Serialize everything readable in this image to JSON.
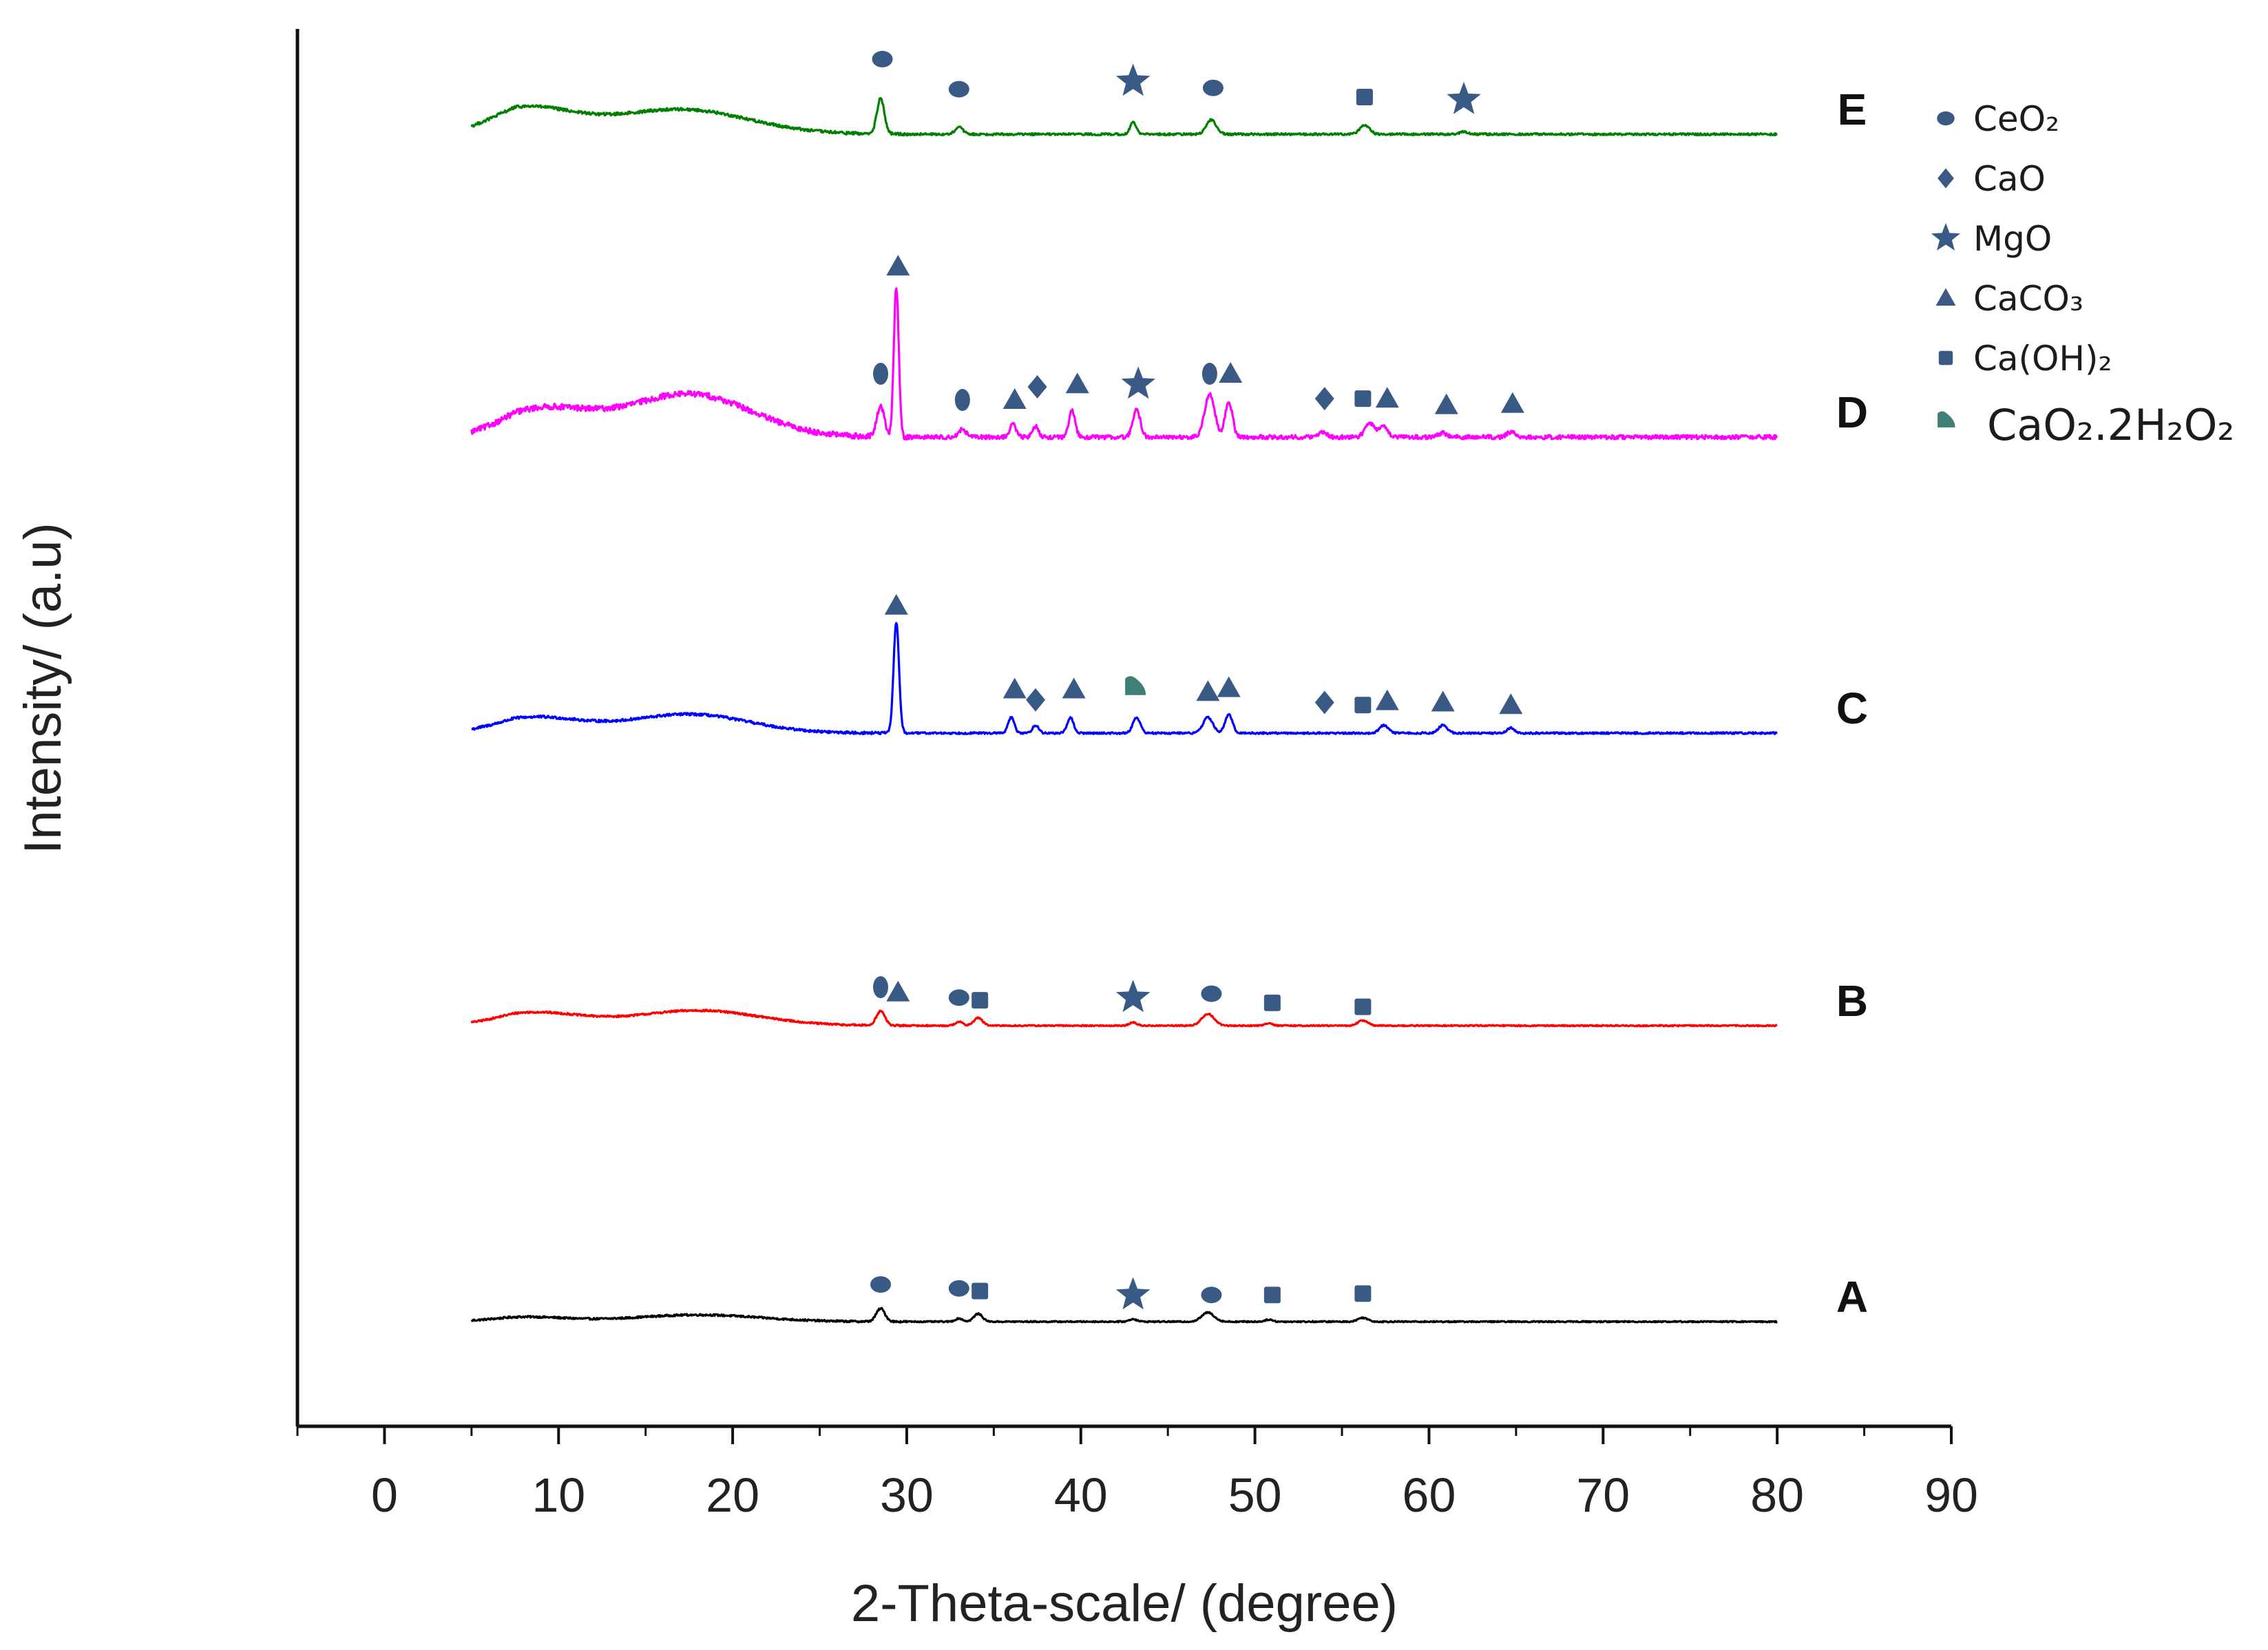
{
  "chart_data": {
    "type": "line",
    "title": "",
    "xlabel": "2-Theta-scale/ (degree)",
    "ylabel": "Intensity/ (a.u)",
    "xlim": [
      -5,
      90
    ],
    "xticks": [
      0,
      10,
      20,
      30,
      40,
      50,
      60,
      70,
      80,
      90
    ],
    "x_range": [
      5,
      80
    ],
    "grid": false,
    "legend_position": "top-right",
    "colors": {
      "marker": "#3a5a86",
      "hexagonal": "#3e7f78",
      "axis": "#111111"
    },
    "legend": [
      {
        "shape": "ellipse",
        "label": "CeO₂"
      },
      {
        "shape": "diamond",
        "label": "CaO"
      },
      {
        "shape": "star",
        "label": "MgO"
      },
      {
        "shape": "triangle",
        "label": "CaCO₃"
      },
      {
        "shape": "square",
        "label": "Ca(OH)₂"
      },
      {
        "shape": "leaf",
        "label": "CaO₂.2H₂O₂"
      }
    ],
    "series": [
      {
        "name": "A",
        "color": "#000000",
        "baseline": 0.0,
        "humps": [
          [
            8,
            0.18,
            3.5
          ],
          [
            18,
            0.26,
            5
          ]
        ],
        "peaks": [
          [
            28.5,
            0.5,
            0.35
          ],
          [
            33.0,
            0.12,
            0.3
          ],
          [
            34.1,
            0.3,
            0.35
          ],
          [
            43.0,
            0.1,
            0.3
          ],
          [
            47.3,
            0.35,
            0.5
          ],
          [
            50.8,
            0.08,
            0.3
          ],
          [
            56.2,
            0.15,
            0.4
          ]
        ],
        "noise": 0.025,
        "markers": [
          {
            "shape": "ellipse",
            "x": 28.5,
            "y": 1.0
          },
          {
            "shape": "ellipse",
            "x": 33.0,
            "y": 0.85
          },
          {
            "shape": "square",
            "x": 34.2,
            "y": 0.75
          },
          {
            "shape": "star",
            "x": 43.0,
            "y": 0.6
          },
          {
            "shape": "ellipse",
            "x": 47.5,
            "y": 0.6
          },
          {
            "shape": "square",
            "x": 51.0,
            "y": 0.6
          },
          {
            "shape": "square",
            "x": 56.2,
            "y": 0.65
          }
        ]
      },
      {
        "name": "B",
        "color": "#ff0000",
        "baseline": 0.0,
        "humps": [
          [
            8.5,
            0.5,
            4
          ],
          [
            18,
            0.58,
            5
          ]
        ],
        "peaks": [
          [
            28.5,
            0.55,
            0.35
          ],
          [
            33.0,
            0.15,
            0.3
          ],
          [
            34.1,
            0.3,
            0.35
          ],
          [
            43.0,
            0.12,
            0.3
          ],
          [
            47.3,
            0.45,
            0.5
          ],
          [
            50.8,
            0.1,
            0.3
          ],
          [
            56.2,
            0.2,
            0.4
          ]
        ],
        "noise": 0.025,
        "markers": [
          {
            "shape": "ellipse-v",
            "x": 28.5,
            "y": 1.05
          },
          {
            "shape": "triangle",
            "x": 29.5,
            "y": 0.85
          },
          {
            "shape": "ellipse",
            "x": 33.0,
            "y": 0.65
          },
          {
            "shape": "square",
            "x": 34.2,
            "y": 0.55
          },
          {
            "shape": "star",
            "x": 43.0,
            "y": 0.65
          },
          {
            "shape": "ellipse",
            "x": 47.5,
            "y": 0.8
          },
          {
            "shape": "square",
            "x": 51.0,
            "y": 0.45
          },
          {
            "shape": "square",
            "x": 56.2,
            "y": 0.3
          }
        ]
      },
      {
        "name": "C",
        "color": "#0000ff",
        "baseline": 0.0,
        "humps": [
          [
            8.5,
            0.6,
            4
          ],
          [
            17.5,
            0.72,
            4.8
          ]
        ],
        "peaks": [
          [
            29.4,
            4.25,
            0.22
          ],
          [
            36.0,
            0.6,
            0.25
          ],
          [
            37.4,
            0.3,
            0.25
          ],
          [
            39.4,
            0.6,
            0.25
          ],
          [
            43.2,
            0.6,
            0.3
          ],
          [
            47.3,
            0.6,
            0.4
          ],
          [
            48.5,
            0.7,
            0.3
          ],
          [
            57.4,
            0.3,
            0.35
          ],
          [
            60.8,
            0.3,
            0.35
          ],
          [
            64.7,
            0.2,
            0.3
          ]
        ],
        "noise": 0.035,
        "markers": [
          {
            "shape": "triangle",
            "x": 29.4,
            "y": 4.45
          },
          {
            "shape": "triangle",
            "x": 36.2,
            "y": 1.25
          },
          {
            "shape": "diamond",
            "x": 37.4,
            "y": 0.85
          },
          {
            "shape": "triangle",
            "x": 39.6,
            "y": 1.25
          },
          {
            "shape": "leaf",
            "x": 43.1,
            "y": 1.4
          },
          {
            "shape": "triangle",
            "x": 47.3,
            "y": 1.15
          },
          {
            "shape": "triangle",
            "x": 48.5,
            "y": 1.3
          },
          {
            "shape": "diamond",
            "x": 54.0,
            "y": 0.75
          },
          {
            "shape": "square",
            "x": 56.2,
            "y": 0.65
          },
          {
            "shape": "triangle",
            "x": 57.6,
            "y": 0.8
          },
          {
            "shape": "triangle",
            "x": 60.8,
            "y": 0.75
          },
          {
            "shape": "triangle",
            "x": 64.7,
            "y": 0.65
          }
        ]
      },
      {
        "name": "D",
        "color": "#ff00ff",
        "baseline": 0.0,
        "humps": [
          [
            9,
            1.05,
            4
          ],
          [
            17.5,
            1.65,
            5
          ]
        ],
        "peaks": [
          [
            28.5,
            1.2,
            0.3
          ],
          [
            29.4,
            5.75,
            0.2
          ],
          [
            33.2,
            0.3,
            0.3
          ],
          [
            36.1,
            0.5,
            0.25
          ],
          [
            37.4,
            0.4,
            0.25
          ],
          [
            39.5,
            1.0,
            0.25
          ],
          [
            43.2,
            1.05,
            0.3
          ],
          [
            47.4,
            1.65,
            0.4
          ],
          [
            48.5,
            1.35,
            0.3
          ],
          [
            53.9,
            0.2,
            0.3
          ],
          [
            56.6,
            0.5,
            0.4
          ],
          [
            57.4,
            0.4,
            0.35
          ],
          [
            60.8,
            0.15,
            0.35
          ],
          [
            64.7,
            0.2,
            0.3
          ]
        ],
        "noise": 0.08,
        "markers": [
          {
            "shape": "triangle",
            "x": 29.5,
            "y": 6.1
          },
          {
            "shape": "ellipse-v",
            "x": 28.5,
            "y": 2.0
          },
          {
            "shape": "ellipse-v",
            "x": 33.2,
            "y": 1.0
          },
          {
            "shape": "triangle",
            "x": 36.2,
            "y": 1.0
          },
          {
            "shape": "diamond",
            "x": 37.5,
            "y": 1.5
          },
          {
            "shape": "triangle",
            "x": 39.8,
            "y": 1.6
          },
          {
            "shape": "star",
            "x": 43.3,
            "y": 1.6
          },
          {
            "shape": "ellipse-v",
            "x": 47.4,
            "y": 2.0
          },
          {
            "shape": "triangle",
            "x": 48.6,
            "y": 2.0
          },
          {
            "shape": "diamond",
            "x": 54.0,
            "y": 1.05
          },
          {
            "shape": "square",
            "x": 56.2,
            "y": 1.05
          },
          {
            "shape": "triangle",
            "x": 57.6,
            "y": 1.05
          },
          {
            "shape": "triangle",
            "x": 61.0,
            "y": 0.8
          },
          {
            "shape": "triangle",
            "x": 64.8,
            "y": 0.85
          }
        ]
      },
      {
        "name": "E",
        "color": "#008000",
        "baseline": 0.0,
        "humps": [
          [
            8,
            1.0,
            4
          ],
          [
            17,
            0.95,
            5.5
          ]
        ],
        "peaks": [
          [
            28.5,
            1.35,
            0.3
          ],
          [
            33.0,
            0.3,
            0.3
          ],
          [
            43.0,
            0.45,
            0.25
          ],
          [
            47.5,
            0.55,
            0.4
          ],
          [
            56.3,
            0.35,
            0.4
          ],
          [
            62.0,
            0.1,
            0.3
          ]
        ],
        "noise": 0.04,
        "markers": [
          {
            "shape": "ellipse",
            "x": 28.6,
            "y": 2.45
          },
          {
            "shape": "ellipse",
            "x": 33.0,
            "y": 1.3
          },
          {
            "shape": "star",
            "x": 43.0,
            "y": 1.6
          },
          {
            "shape": "ellipse",
            "x": 47.6,
            "y": 1.35
          },
          {
            "shape": "square",
            "x": 56.3,
            "y": 1.0
          },
          {
            "shape": "star",
            "x": 62.0,
            "y": 0.9
          }
        ]
      }
    ]
  }
}
